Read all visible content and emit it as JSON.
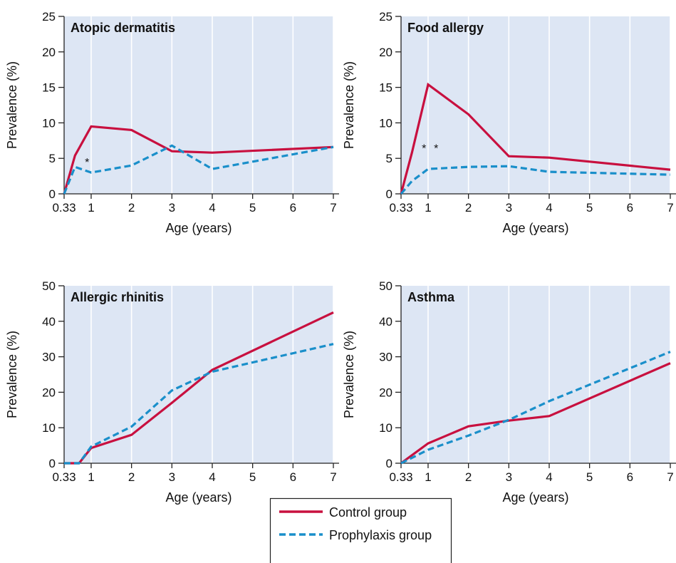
{
  "colors": {
    "panel_bg": "#dde6f4",
    "gridline": "#ffffff",
    "axis": "#222222",
    "control": "#c8103f",
    "prophylaxis": "#1a8fca"
  },
  "legend": {
    "control_label": "Control group",
    "prophylaxis_label": "Prophylaxis group"
  },
  "chart_data": [
    {
      "type": "line",
      "title": "Atopic dermatitis",
      "xlabel": "Age (years)",
      "ylabel": "Prevalence (%)",
      "xlim": [
        0.33,
        7
      ],
      "ylim": [
        0,
        25
      ],
      "xticks": [
        0.33,
        1,
        2,
        3,
        4,
        5,
        6,
        7
      ],
      "xtick_labels": [
        "0.33",
        "1",
        "2",
        "3",
        "4",
        "5",
        "6",
        "7"
      ],
      "yticks": [
        0,
        5,
        10,
        15,
        20,
        25
      ],
      "grid": "vertical",
      "annotations": [
        {
          "text": "*",
          "x": 0.9,
          "y": 4.5
        }
      ],
      "series": [
        {
          "name": "Control group",
          "style": "solid",
          "x": [
            0.33,
            0.6,
            1,
            2,
            3,
            4,
            7
          ],
          "y": [
            0,
            5.4,
            9.5,
            9.0,
            6.0,
            5.8,
            6.6
          ]
        },
        {
          "name": "Prophylaxis group",
          "style": "dashed",
          "x": [
            0.33,
            0.6,
            1,
            2,
            3,
            4,
            7
          ],
          "y": [
            0,
            3.8,
            3.0,
            4.0,
            6.8,
            3.5,
            6.6
          ]
        }
      ]
    },
    {
      "type": "line",
      "title": "Food allergy",
      "xlabel": "Age (years)",
      "ylabel": "Prevalence (%)",
      "xlim": [
        0.33,
        7
      ],
      "ylim": [
        0,
        25
      ],
      "xticks": [
        0.33,
        1,
        2,
        3,
        4,
        5,
        6,
        7
      ],
      "xtick_labels": [
        "0.33",
        "1",
        "2",
        "3",
        "4",
        "5",
        "6",
        "7"
      ],
      "yticks": [
        0,
        5,
        10,
        15,
        20,
        25
      ],
      "grid": "vertical",
      "annotations": [
        {
          "text": "*",
          "x": 0.9,
          "y": 6.5
        },
        {
          "text": "*",
          "x": 1.2,
          "y": 6.5
        }
      ],
      "series": [
        {
          "name": "Control group",
          "style": "solid",
          "x": [
            0.33,
            0.6,
            1,
            2,
            3,
            4,
            7
          ],
          "y": [
            0,
            5.8,
            15.4,
            11.2,
            5.3,
            5.1,
            3.4
          ]
        },
        {
          "name": "Prophylaxis group",
          "style": "dashed",
          "x": [
            0.33,
            0.6,
            1,
            2,
            3,
            4,
            7
          ],
          "y": [
            0,
            1.8,
            3.5,
            3.8,
            3.9,
            3.1,
            2.7
          ]
        }
      ]
    },
    {
      "type": "line",
      "title": "Allergic rhinitis",
      "xlabel": "Age (years)",
      "ylabel": "Prevalence (%)",
      "xlim": [
        0.33,
        7
      ],
      "ylim": [
        0,
        50
      ],
      "xticks": [
        0.33,
        1,
        2,
        3,
        4,
        5,
        6,
        7
      ],
      "xtick_labels": [
        "0.33",
        "1",
        "2",
        "3",
        "4",
        "5",
        "6",
        "7"
      ],
      "yticks": [
        0,
        10,
        20,
        30,
        40,
        50
      ],
      "grid": "vertical",
      "annotations": [],
      "series": [
        {
          "name": "Control group",
          "style": "solid",
          "x": [
            0.33,
            0.7,
            1,
            2,
            3,
            4,
            7
          ],
          "y": [
            0,
            0,
            4.3,
            8.0,
            17.0,
            26.3,
            42.5
          ]
        },
        {
          "name": "Prophylaxis group",
          "style": "dashed",
          "x": [
            0.33,
            0.7,
            1,
            2,
            3,
            4,
            7
          ],
          "y": [
            0,
            0,
            4.7,
            10.3,
            20.5,
            25.8,
            33.6
          ]
        }
      ]
    },
    {
      "type": "line",
      "title": "Asthma",
      "xlabel": "Age (years)",
      "ylabel": "Prevalence (%)",
      "xlim": [
        0.33,
        7
      ],
      "ylim": [
        0,
        50
      ],
      "xticks": [
        0.33,
        1,
        2,
        3,
        4,
        5,
        6,
        7
      ],
      "xtick_labels": [
        "0.33",
        "1",
        "2",
        "3",
        "4",
        "5",
        "6",
        "7"
      ],
      "yticks": [
        0,
        10,
        20,
        30,
        40,
        50
      ],
      "grid": "vertical",
      "annotations": [],
      "series": [
        {
          "name": "Control group",
          "style": "solid",
          "x": [
            0.33,
            1,
            2,
            3,
            4,
            7
          ],
          "y": [
            0,
            5.6,
            10.4,
            12.0,
            13.3,
            28.2
          ]
        },
        {
          "name": "Prophylaxis group",
          "style": "dashed",
          "x": [
            0.33,
            1,
            2,
            3,
            4,
            7
          ],
          "y": [
            0,
            3.8,
            7.8,
            12.2,
            17.5,
            31.4
          ]
        }
      ]
    }
  ]
}
